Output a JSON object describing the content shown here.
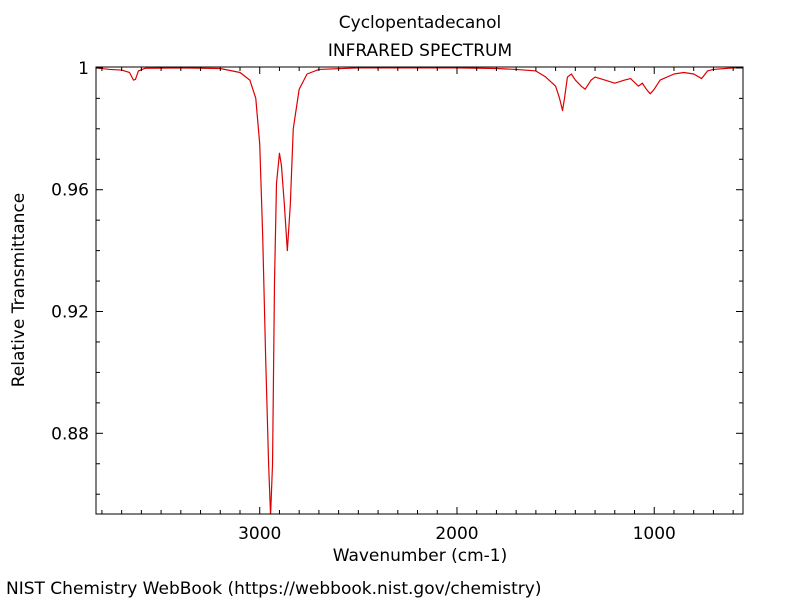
{
  "footer": "NIST Chemistry WebBook (https://webbook.nist.gov/chemistry)",
  "chart_data": {
    "type": "line",
    "title": "Cyclopentadecanol",
    "subtitle": "INFRARED SPECTRUM",
    "xlabel": "Wavenumber (cm-1)",
    "ylabel": "Relative Transmittance",
    "xlim": [
      3830,
      550
    ],
    "ylim": [
      0.8535,
      1.0003
    ],
    "x_reversed": true,
    "xticks": [
      3000,
      2000,
      1000
    ],
    "xtick_labels": [
      "3000",
      "2000",
      "1000"
    ],
    "yticks": [
      1,
      0.96,
      0.92,
      0.88
    ],
    "ytick_labels": [
      "1",
      "0.96",
      "0.92",
      "0.88"
    ],
    "grid": false,
    "legend": "none",
    "series": [
      {
        "color": "#dd0000",
        "points": [
          [
            3830,
            1.0
          ],
          [
            3760,
            0.9995
          ],
          [
            3700,
            0.9993
          ],
          [
            3660,
            0.9985
          ],
          [
            3640,
            0.996
          ],
          [
            3630,
            0.9962
          ],
          [
            3615,
            0.999
          ],
          [
            3580,
            0.9999
          ],
          [
            3400,
            1.0
          ],
          [
            3200,
            0.9998
          ],
          [
            3100,
            0.9985
          ],
          [
            3050,
            0.996
          ],
          [
            3020,
            0.99
          ],
          [
            3000,
            0.975
          ],
          [
            2985,
            0.945
          ],
          [
            2970,
            0.905
          ],
          [
            2955,
            0.87
          ],
          [
            2945,
            0.853
          ],
          [
            2935,
            0.87
          ],
          [
            2925,
            0.93
          ],
          [
            2915,
            0.962
          ],
          [
            2900,
            0.972
          ],
          [
            2890,
            0.968
          ],
          [
            2875,
            0.955
          ],
          [
            2860,
            0.94
          ],
          [
            2845,
            0.955
          ],
          [
            2830,
            0.98
          ],
          [
            2800,
            0.993
          ],
          [
            2760,
            0.998
          ],
          [
            2700,
            0.9995
          ],
          [
            2500,
            1.0
          ],
          [
            2000,
            1.0
          ],
          [
            1800,
            0.9998
          ],
          [
            1700,
            0.9995
          ],
          [
            1600,
            0.999
          ],
          [
            1550,
            0.997
          ],
          [
            1500,
            0.994
          ],
          [
            1480,
            0.99
          ],
          [
            1465,
            0.986
          ],
          [
            1455,
            0.99
          ],
          [
            1440,
            0.997
          ],
          [
            1420,
            0.998
          ],
          [
            1400,
            0.996
          ],
          [
            1370,
            0.994
          ],
          [
            1350,
            0.993
          ],
          [
            1320,
            0.996
          ],
          [
            1300,
            0.997
          ],
          [
            1250,
            0.996
          ],
          [
            1200,
            0.995
          ],
          [
            1150,
            0.996
          ],
          [
            1120,
            0.9965
          ],
          [
            1080,
            0.994
          ],
          [
            1060,
            0.995
          ],
          [
            1040,
            0.993
          ],
          [
            1020,
            0.9915
          ],
          [
            1000,
            0.993
          ],
          [
            970,
            0.996
          ],
          [
            900,
            0.998
          ],
          [
            850,
            0.9985
          ],
          [
            800,
            0.998
          ],
          [
            760,
            0.9965
          ],
          [
            730,
            0.999
          ],
          [
            700,
            0.9995
          ],
          [
            600,
            1.0
          ],
          [
            550,
            1.0
          ]
        ]
      }
    ]
  }
}
